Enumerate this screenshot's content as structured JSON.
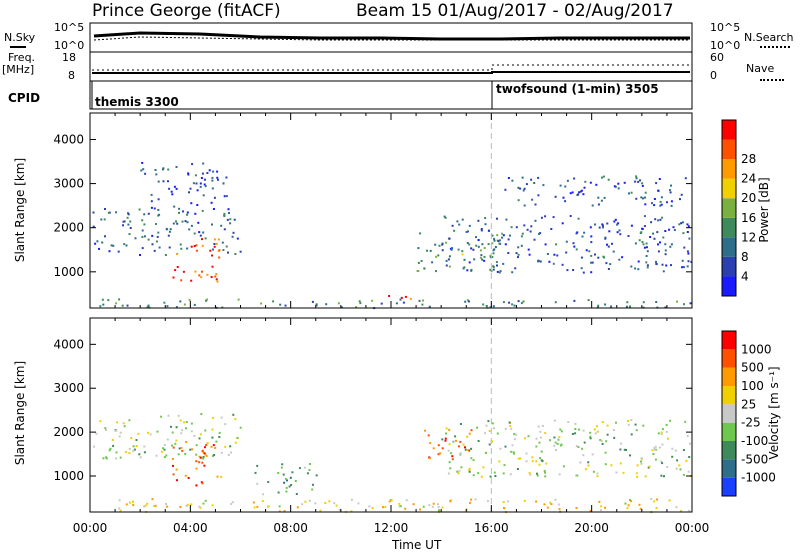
{
  "header": {
    "station": "Prince George (fitACF)",
    "beam_info": "Beam 15 01/Aug/2017 - 02/Aug/2017"
  },
  "status": {
    "nsky_label": "N.Sky",
    "nsky_ticks": [
      "10^5",
      "10^0"
    ],
    "nsearch_label": "N.Search",
    "nsearch_ticks": [
      "10^5",
      "10^0"
    ],
    "freq_label": "Freq.",
    "freq_unit": "[MHz]",
    "freq_ticks": [
      "18",
      "8"
    ],
    "nave_label": "Nave",
    "nave_ticks": [
      "60",
      "0"
    ],
    "cpid_label": "CPID",
    "cpid_segments": [
      "themis 3300",
      "twofsound (1-min) 3505"
    ]
  },
  "chart_data": [
    {
      "type": "heatmap",
      "panel": "power",
      "ylabel": "Slant Range [km]",
      "xlabel": "",
      "yticks": [
        1000,
        2000,
        3000,
        4000
      ],
      "ylim": [
        180,
        4600
      ],
      "xlim_hours": [
        0,
        24
      ],
      "colorbar_label": "Power [dB]",
      "colorbar_ticks": [
        "4",
        "8",
        "12",
        "16",
        "20",
        "24",
        "28"
      ],
      "colorbar_colors": [
        "#1a1aff",
        "#2b3fb0",
        "#2f6e8a",
        "#3f8a5a",
        "#7ab040",
        "#f0d000",
        "#ff9a00",
        "#ff5000",
        "#ff0000"
      ],
      "regions": [
        {
          "t0": 0.1,
          "t1": 6.0,
          "r0": 1400,
          "r1": 2450,
          "level": 0.25
        },
        {
          "t0": 3.2,
          "t1": 5.2,
          "r0": 800,
          "r1": 1800,
          "level": 0.85
        },
        {
          "t0": 2.0,
          "t1": 5.5,
          "r0": 2400,
          "r1": 3500,
          "level": 0.2
        },
        {
          "t0": 0.2,
          "t1": 24.0,
          "r0": 200,
          "r1": 400,
          "level": 0.35
        },
        {
          "t0": 11.3,
          "t1": 13.0,
          "r0": 330,
          "r1": 480,
          "level": 0.95
        },
        {
          "t0": 13.0,
          "t1": 16.5,
          "r0": 1000,
          "r1": 2000,
          "level": 0.4
        },
        {
          "t0": 14.0,
          "t1": 24.0,
          "r0": 1000,
          "r1": 2300,
          "level": 0.2
        },
        {
          "t0": 16.5,
          "t1": 23.8,
          "r0": 2500,
          "r1": 3200,
          "level": 0.2
        }
      ]
    },
    {
      "type": "heatmap",
      "panel": "velocity",
      "ylabel": "Slant Range [km]",
      "xlabel": "Time UT",
      "xticks": [
        "00:00",
        "04:00",
        "08:00",
        "12:00",
        "16:00",
        "20:00",
        "00:00"
      ],
      "yticks": [
        1000,
        2000,
        3000,
        4000
      ],
      "ylim": [
        180,
        4600
      ],
      "xlim_hours": [
        0,
        24
      ],
      "colorbar_label": "Velocity [m s⁻¹]",
      "colorbar_ticks": [
        "1000",
        "500",
        "100",
        "25",
        "-25",
        "-100",
        "-500",
        "-1000"
      ],
      "colorbar_colors": [
        "#1a3fff",
        "#2f6e8a",
        "#3f8a5a",
        "#6ec850",
        "#c8c8c8",
        "#f0d000",
        "#ff9a00",
        "#ff5000",
        "#ff0000"
      ],
      "regions": [
        {
          "t0": 0.1,
          "t1": 6.0,
          "r0": 1400,
          "r1": 2450,
          "level": 0.45
        },
        {
          "t0": 3.2,
          "t1": 5.2,
          "r0": 800,
          "r1": 1800,
          "level": 0.8
        },
        {
          "t0": 0.2,
          "t1": 24.0,
          "r0": 200,
          "r1": 500,
          "level": 0.6
        },
        {
          "t0": 13.3,
          "t1": 15.3,
          "r0": 1400,
          "r1": 2100,
          "level": 0.8
        },
        {
          "t0": 14.0,
          "t1": 24.0,
          "r0": 1000,
          "r1": 2300,
          "level": 0.45
        },
        {
          "t0": 6.5,
          "t1": 9.0,
          "r0": 600,
          "r1": 1300,
          "level": 0.3
        }
      ]
    }
  ]
}
